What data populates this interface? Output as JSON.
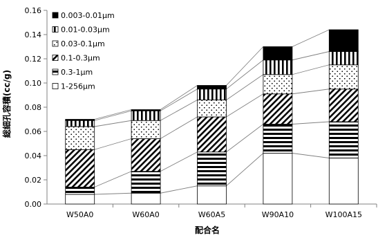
{
  "chart_data": {
    "type": "bar",
    "stacked": true,
    "title": "",
    "xlabel": "配合名",
    "ylabel": "総細孔容積(cc/g)",
    "ylim": [
      0,
      0.16
    ],
    "ytick_step": 0.02,
    "ytick_labels": [
      "0.00",
      "0.02",
      "0.04",
      "0.06",
      "0.08",
      "0.10",
      "0.12",
      "0.14",
      "0.16"
    ],
    "grid": false,
    "legend_position": "top-left",
    "series_lines": true,
    "categories": [
      "W50A0",
      "W60A0",
      "W60A5",
      "W90A10",
      "W100A15"
    ],
    "series": [
      {
        "name": "1-256μm",
        "pattern": "empty",
        "values": [
          0.008,
          0.009,
          0.015,
          0.042,
          0.038
        ]
      },
      {
        "name": "0.3-1μm",
        "pattern": "hlines",
        "values": [
          0.006,
          0.018,
          0.028,
          0.024,
          0.03
        ]
      },
      {
        "name": "0.1-0.3μm",
        "pattern": "diagonal",
        "values": [
          0.031,
          0.027,
          0.029,
          0.025,
          0.027
        ]
      },
      {
        "name": "0.03-0.1μm",
        "pattern": "dots",
        "values": [
          0.019,
          0.015,
          0.014,
          0.016,
          0.02
        ]
      },
      {
        "name": "0.01-0.03μm",
        "pattern": "vlines",
        "values": [
          0.005,
          0.008,
          0.009,
          0.012,
          0.011
        ]
      },
      {
        "name": "0.003-0.01μm",
        "pattern": "solid",
        "values": [
          0.001,
          0.001,
          0.003,
          0.011,
          0.018
        ]
      }
    ],
    "colors": {
      "fill": "#000000",
      "background": "#ffffff",
      "axis": "#808080",
      "line": "#808080"
    }
  }
}
